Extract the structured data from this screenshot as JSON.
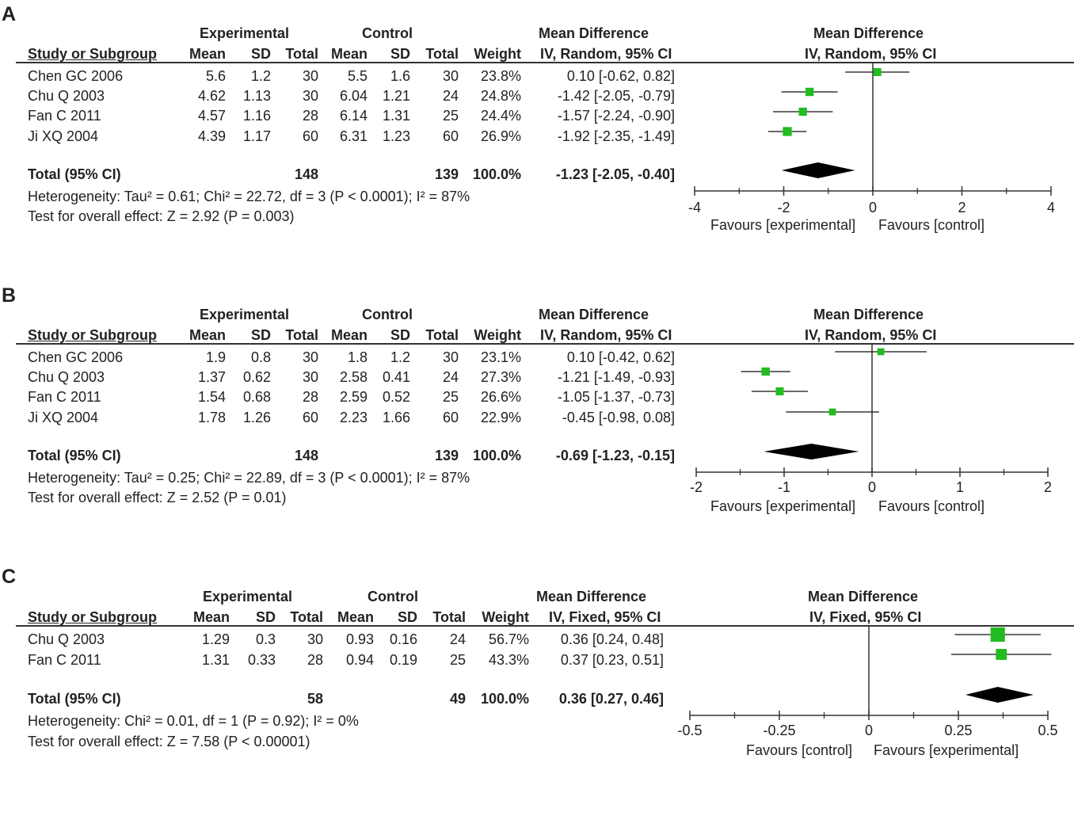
{
  "colors": {
    "square": "#22bb22",
    "line": "#111111",
    "axis": "#333333",
    "diamond": "#000000"
  },
  "chart_data": [
    {
      "type": "forest",
      "panel_label": "A",
      "headers": {
        "experimental": "Experimental",
        "control": "Control",
        "md_group": "Mean Difference",
        "plot_group": "Mean Difference",
        "study": "Study or Subgroup",
        "mean": "Mean",
        "sd": "SD",
        "total": "Total",
        "mean2": "Mean",
        "sd2": "SD",
        "total2": "Total",
        "weight": "Weight",
        "ci": "IV, Random, 95% CI",
        "plot_ci": "IV, Random, 95% CI"
      },
      "studies": [
        {
          "name": "Chen GC 2006",
          "e_mean": "5.6",
          "e_sd": "1.2",
          "e_total": "30",
          "c_mean": "5.5",
          "c_sd": "1.6",
          "c_total": "30",
          "weight": "23.8%",
          "ci_text": "0.10 [-0.62, 0.82]",
          "md": 0.1,
          "lo": -0.62,
          "hi": 0.82,
          "w": 23.8
        },
        {
          "name": "Chu Q 2003",
          "e_mean": "4.62",
          "e_sd": "1.13",
          "e_total": "30",
          "c_mean": "6.04",
          "c_sd": "1.21",
          "c_total": "24",
          "weight": "24.8%",
          "ci_text": "-1.42 [-2.05, -0.79]",
          "md": -1.42,
          "lo": -2.05,
          "hi": -0.79,
          "w": 24.8
        },
        {
          "name": "Fan C 2011",
          "e_mean": "4.57",
          "e_sd": "1.16",
          "e_total": "28",
          "c_mean": "6.14",
          "c_sd": "1.31",
          "c_total": "25",
          "weight": "24.4%",
          "ci_text": "-1.57 [-2.24, -0.90]",
          "md": -1.57,
          "lo": -2.24,
          "hi": -0.9,
          "w": 24.4
        },
        {
          "name": "Ji XQ 2004",
          "e_mean": "4.39",
          "e_sd": "1.17",
          "e_total": "60",
          "c_mean": "6.31",
          "c_sd": "1.23",
          "c_total": "60",
          "weight": "26.9%",
          "ci_text": "-1.92 [-2.35, -1.49]",
          "md": -1.92,
          "lo": -2.35,
          "hi": -1.49,
          "w": 26.9
        }
      ],
      "total": {
        "label": "Total (95% CI)",
        "e_total": "148",
        "c_total": "139",
        "weight": "100.0%",
        "ci_text": "-1.23 [-2.05, -0.40]",
        "md": -1.23,
        "lo": -2.05,
        "hi": -0.4
      },
      "heterogeneity": "Heterogeneity: Tau² = 0.61; Chi² = 22.72, df = 3 (P < 0.0001); I² = 87%",
      "overall": "Test for overall effect: Z = 2.92 (P = 0.003)",
      "axis": {
        "min": -4,
        "max": 4,
        "ticks": [
          -4,
          -2,
          0,
          2,
          4
        ],
        "tick_labels": [
          "-4",
          "-2",
          "0",
          "2",
          "4"
        ],
        "minor": [
          -3,
          -1,
          1,
          3
        ]
      },
      "favours_left": "Favours [experimental]",
      "favours_right": "Favours [control]"
    },
    {
      "type": "forest",
      "panel_label": "B",
      "headers": {
        "experimental": "Experimental",
        "control": "Control",
        "md_group": "Mean Difference",
        "plot_group": "Mean Difference",
        "study": "Study or Subgroup",
        "mean": "Mean",
        "sd": "SD",
        "total": "Total",
        "mean2": "Mean",
        "sd2": "SD",
        "total2": "Total",
        "weight": "Weight",
        "ci": "IV, Random, 95% CI",
        "plot_ci": "IV, Random, 95% CI"
      },
      "studies": [
        {
          "name": "Chen GC 2006",
          "e_mean": "1.9",
          "e_sd": "0.8",
          "e_total": "30",
          "c_mean": "1.8",
          "c_sd": "1.2",
          "c_total": "30",
          "weight": "23.1%",
          "ci_text": "0.10 [-0.42, 0.62]",
          "md": 0.1,
          "lo": -0.42,
          "hi": 0.62,
          "w": 23.1
        },
        {
          "name": "Chu Q 2003",
          "e_mean": "1.37",
          "e_sd": "0.62",
          "e_total": "30",
          "c_mean": "2.58",
          "c_sd": "0.41",
          "c_total": "24",
          "weight": "27.3%",
          "ci_text": "-1.21 [-1.49, -0.93]",
          "md": -1.21,
          "lo": -1.49,
          "hi": -0.93,
          "w": 27.3
        },
        {
          "name": "Fan C 2011",
          "e_mean": "1.54",
          "e_sd": "0.68",
          "e_total": "28",
          "c_mean": "2.59",
          "c_sd": "0.52",
          "c_total": "25",
          "weight": "26.6%",
          "ci_text": "-1.05 [-1.37, -0.73]",
          "md": -1.05,
          "lo": -1.37,
          "hi": -0.73,
          "w": 26.6
        },
        {
          "name": "Ji XQ 2004",
          "e_mean": "1.78",
          "e_sd": "1.26",
          "e_total": "60",
          "c_mean": "2.23",
          "c_sd": "1.66",
          "c_total": "60",
          "weight": "22.9%",
          "ci_text": "-0.45 [-0.98, 0.08]",
          "md": -0.45,
          "lo": -0.98,
          "hi": 0.08,
          "w": 22.9
        }
      ],
      "total": {
        "label": "Total (95% CI)",
        "e_total": "148",
        "c_total": "139",
        "weight": "100.0%",
        "ci_text": "-0.69 [-1.23, -0.15]",
        "md": -0.69,
        "lo": -1.23,
        "hi": -0.15
      },
      "heterogeneity": "Heterogeneity: Tau² = 0.25; Chi² = 22.89, df = 3 (P < 0.0001); I² = 87%",
      "overall": "Test for overall effect: Z = 2.52 (P = 0.01)",
      "axis": {
        "min": -2,
        "max": 2,
        "ticks": [
          -2,
          -1,
          0,
          1,
          2
        ],
        "tick_labels": [
          "-2",
          "-1",
          "0",
          "1",
          "2"
        ],
        "minor": [
          -1.5,
          -0.5,
          0.5,
          1.5
        ]
      },
      "favours_left": "Favours [experimental]",
      "favours_right": "Favours [control]"
    },
    {
      "type": "forest",
      "panel_label": "C",
      "headers": {
        "experimental": "Experimental",
        "control": "Control",
        "md_group": "Mean Difference",
        "plot_group": "Mean Difference",
        "study": "Study or Subgroup",
        "mean": "Mean",
        "sd": "SD",
        "total": "Total",
        "mean2": "Mean",
        "sd2": "SD",
        "total2": "Total",
        "weight": "Weight",
        "ci": "IV, Fixed, 95% CI",
        "plot_ci": "IV, Fixed, 95% CI"
      },
      "studies": [
        {
          "name": "Chu Q 2003",
          "e_mean": "1.29",
          "e_sd": "0.3",
          "e_total": "30",
          "c_mean": "0.93",
          "c_sd": "0.16",
          "c_total": "24",
          "weight": "56.7%",
          "ci_text": "0.36 [0.24, 0.48]",
          "md": 0.36,
          "lo": 0.24,
          "hi": 0.48,
          "w": 56.7
        },
        {
          "name": "Fan C 2011",
          "e_mean": "1.31",
          "e_sd": "0.33",
          "e_total": "28",
          "c_mean": "0.94",
          "c_sd": "0.19",
          "c_total": "25",
          "weight": "43.3%",
          "ci_text": "0.37 [0.23, 0.51]",
          "md": 0.37,
          "lo": 0.23,
          "hi": 0.51,
          "w": 43.3
        }
      ],
      "total": {
        "label": "Total (95% CI)",
        "e_total": "58",
        "c_total": "49",
        "weight": "100.0%",
        "ci_text": "0.36 [0.27, 0.46]",
        "md": 0.36,
        "lo": 0.27,
        "hi": 0.46
      },
      "heterogeneity": "Heterogeneity: Chi² = 0.01, df = 1 (P = 0.92); I² = 0%",
      "overall": "Test for overall effect: Z = 7.58 (P < 0.00001)",
      "axis": {
        "min": -0.5,
        "max": 0.5,
        "ticks": [
          -0.5,
          -0.25,
          0,
          0.25,
          0.5
        ],
        "tick_labels": [
          "-0.5",
          "-0.25",
          "0",
          "0.25",
          "0.5"
        ],
        "minor": [
          -0.375,
          -0.125,
          0.125,
          0.375
        ]
      },
      "favours_left": "Favours [control]",
      "favours_right": "Favours [experimental]"
    }
  ]
}
